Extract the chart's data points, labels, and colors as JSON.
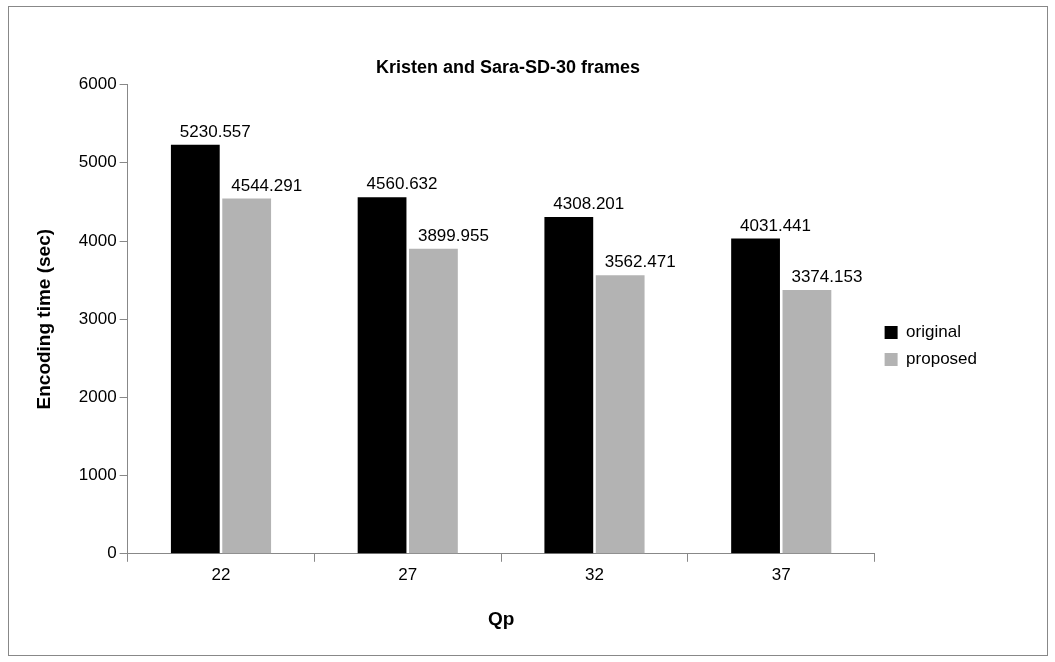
{
  "chart_data": {
    "type": "bar",
    "title": "Kristen and Sara-SD-30 frames",
    "xlabel": "Qp",
    "ylabel": "Encoding time (sec)",
    "categories": [
      "22",
      "27",
      "32",
      "37"
    ],
    "series": [
      {
        "name": "original",
        "color": "#000000",
        "values": [
          5230.557,
          4560.632,
          4308.201,
          4031.441
        ]
      },
      {
        "name": "proposed",
        "color": "#b3b3b3",
        "values": [
          4544.291,
          3899.955,
          3562.471,
          3374.153
        ]
      }
    ],
    "ylim": [
      0,
      6000
    ],
    "yticks": [
      0,
      1000,
      2000,
      3000,
      4000,
      5000,
      6000
    ],
    "grid": false,
    "legend": "right",
    "data_labels": true
  }
}
